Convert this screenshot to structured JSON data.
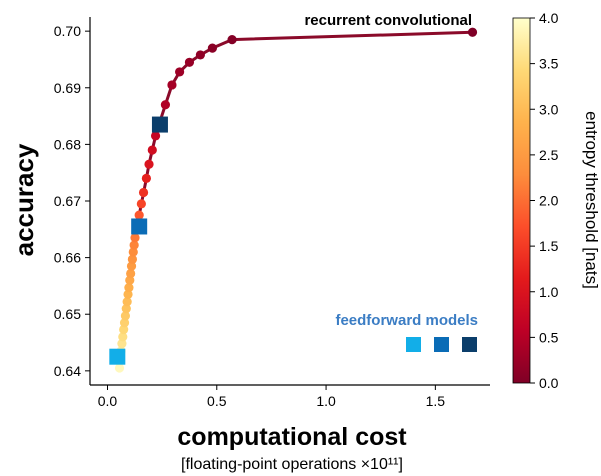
{
  "chart_data": {
    "type": "scatter",
    "xlabel": "computational cost",
    "xlabel_sub": "[floating-point operations ×10¹¹]",
    "ylabel": "accuracy",
    "xlim": [
      -0.08,
      1.75
    ],
    "ylim": [
      0.6375,
      0.7025
    ],
    "x_ticks": [
      "0.0",
      "0.5",
      "1.0",
      "1.5"
    ],
    "y_ticks": [
      "0.64",
      "0.65",
      "0.66",
      "0.67",
      "0.68",
      "0.69",
      "0.70"
    ],
    "colorbar": {
      "label": "entropy threshold [nats]",
      "range": [
        0.0,
        4.0
      ],
      "ticks": [
        "0.0",
        "0.5",
        "1.0",
        "1.5",
        "2.0",
        "2.5",
        "3.0",
        "3.5",
        "4.0"
      ],
      "colors": [
        "#7f0026",
        "#bd0026",
        "#e31a1c",
        "#fc4e2a",
        "#fd8d3c",
        "#feb24c",
        "#fed976",
        "#ffffcc"
      ]
    },
    "series": [
      {
        "name": "recurrent convolutional",
        "color": "#8b0a2a",
        "points": [
          {
            "x": 0.055,
            "y": 0.6405,
            "t": 3.9
          },
          {
            "x": 0.058,
            "y": 0.642,
            "t": 3.8
          },
          {
            "x": 0.062,
            "y": 0.6435,
            "t": 3.7
          },
          {
            "x": 0.066,
            "y": 0.6448,
            "t": 3.6
          },
          {
            "x": 0.07,
            "y": 0.646,
            "t": 3.5
          },
          {
            "x": 0.074,
            "y": 0.6473,
            "t": 3.4
          },
          {
            "x": 0.078,
            "y": 0.6485,
            "t": 3.3
          },
          {
            "x": 0.082,
            "y": 0.6497,
            "t": 3.2
          },
          {
            "x": 0.086,
            "y": 0.651,
            "t": 3.1
          },
          {
            "x": 0.09,
            "y": 0.6522,
            "t": 3.0
          },
          {
            "x": 0.094,
            "y": 0.6535,
            "t": 2.9
          },
          {
            "x": 0.098,
            "y": 0.6547,
            "t": 2.8
          },
          {
            "x": 0.102,
            "y": 0.656,
            "t": 2.7
          },
          {
            "x": 0.106,
            "y": 0.6572,
            "t": 2.6
          },
          {
            "x": 0.11,
            "y": 0.6585,
            "t": 2.5
          },
          {
            "x": 0.114,
            "y": 0.6597,
            "t": 2.4
          },
          {
            "x": 0.118,
            "y": 0.661,
            "t": 2.3
          },
          {
            "x": 0.122,
            "y": 0.6622,
            "t": 2.2
          },
          {
            "x": 0.126,
            "y": 0.6635,
            "t": 2.1
          },
          {
            "x": 0.135,
            "y": 0.6655,
            "t": 2.0
          },
          {
            "x": 0.145,
            "y": 0.6675,
            "t": 1.8
          },
          {
            "x": 0.155,
            "y": 0.6695,
            "t": 1.6
          },
          {
            "x": 0.165,
            "y": 0.6715,
            "t": 1.4
          },
          {
            "x": 0.178,
            "y": 0.674,
            "t": 1.2
          },
          {
            "x": 0.19,
            "y": 0.6765,
            "t": 1.0
          },
          {
            "x": 0.205,
            "y": 0.679,
            "t": 0.85
          },
          {
            "x": 0.22,
            "y": 0.6815,
            "t": 0.7
          },
          {
            "x": 0.24,
            "y": 0.684,
            "t": 0.55
          },
          {
            "x": 0.265,
            "y": 0.687,
            "t": 0.45
          },
          {
            "x": 0.295,
            "y": 0.6905,
            "t": 0.35
          },
          {
            "x": 0.33,
            "y": 0.6928,
            "t": 0.28
          },
          {
            "x": 0.375,
            "y": 0.6945,
            "t": 0.22
          },
          {
            "x": 0.425,
            "y": 0.6958,
            "t": 0.16
          },
          {
            "x": 0.48,
            "y": 0.697,
            "t": 0.1
          },
          {
            "x": 0.57,
            "y": 0.6985,
            "t": 0.05
          },
          {
            "x": 1.67,
            "y": 0.6998,
            "t": 0.0
          }
        ]
      },
      {
        "name": "feedforward models",
        "color": "#3b7dc4",
        "points": [
          {
            "x": 0.045,
            "y": 0.6425,
            "color": "#12aee8"
          },
          {
            "x": 0.145,
            "y": 0.6655,
            "color": "#0a6cb6"
          },
          {
            "x": 0.24,
            "y": 0.6835,
            "color": "#0b3e6b"
          }
        ],
        "legend_colors": [
          "#12aee8",
          "#0a6cb6",
          "#0b3e6b"
        ]
      }
    ]
  }
}
